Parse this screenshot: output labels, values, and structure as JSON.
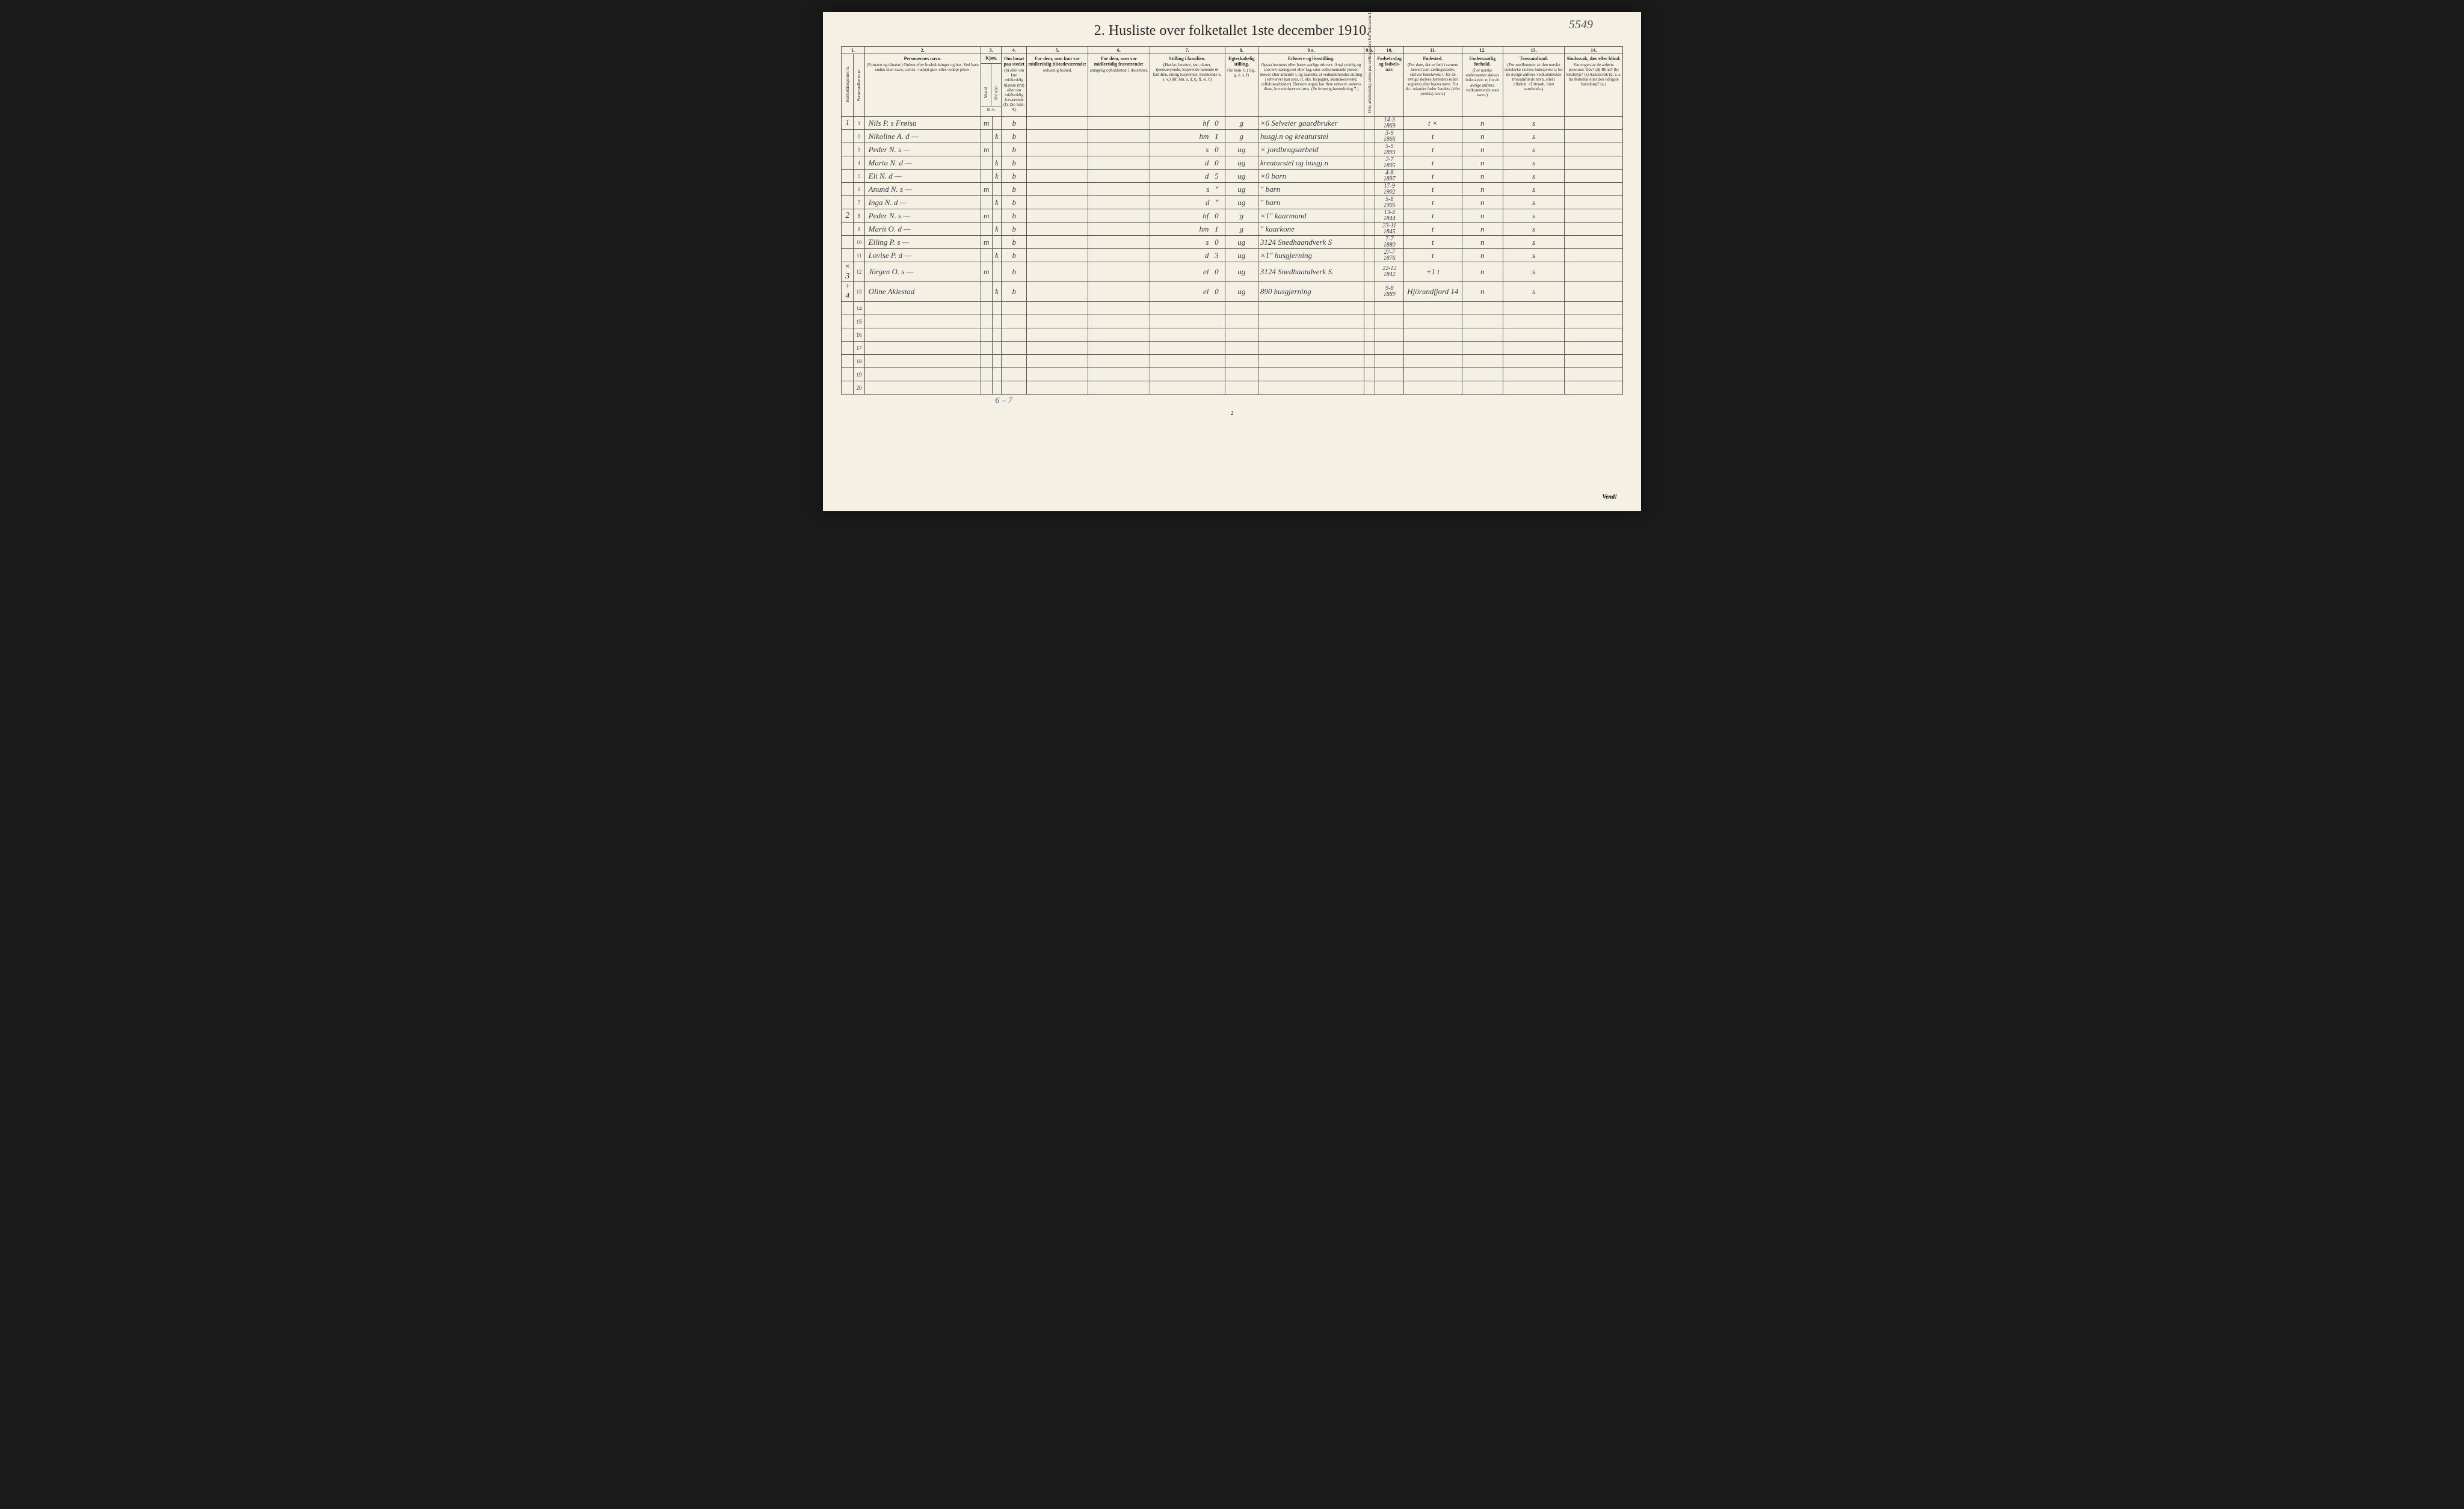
{
  "page_number_handwritten": "5549",
  "title": "2.  Husliste over folketallet 1ste december 1910.",
  "footer_page_num": "2",
  "vend_text": "Vend!",
  "bottom_tally": "6 – 7",
  "column_numbers": [
    "1.",
    "2.",
    "3.",
    "4.",
    "5.",
    "6.",
    "7.",
    "8.",
    "9 a.",
    "9 b.",
    "10.",
    "11.",
    "12.",
    "13.",
    "14."
  ],
  "headers": {
    "c1a": "Husholdningernes nr.",
    "c1b": "Personsedlernes nr.",
    "c2_title": "Personernes navn.",
    "c2_body": "(Fornavn og tilnavn.)\nOrdnet efter husholdninger og hus.\nVed barn endnu uten navn, sættes: «udøpt gut» eller «udøpt pike».",
    "c3_title": "Kjøn.",
    "c3a": "Mænd.",
    "c3b": "Kvinder.",
    "c3_foot": "m. k.",
    "c4_title": "Om bosat paa stedet",
    "c4_body": "(b) eller om kun midlertidig tilstede (mt) eller om midlertidig fraværende (f).\n(Se bem. 4.)",
    "c5_title": "For dem, som kun var midlertidig tilstedeværende:",
    "c5_body": "sedvanlig bosted.",
    "c6_title": "For dem, som var midlertidig fraværende:",
    "c6_body": "antagelig opholdssted 1 december.",
    "c7_title": "Stilling i familien.",
    "c7_body": "(Husfar, husmor, søn, datter, tjenestetyende, losjerende hørende til familien, enslig losjerende, besøkende o. s. v.)\n(hf, hm, s, d, tj, fl, el, b)",
    "c8_title": "Egteskabelig stilling.",
    "c8_body": "(Se bem. 6.)\n(ug, g, e, s, f)",
    "c9a_title": "Erhverv og livsstilling.",
    "c9a_body": "Ogsaa husmors eller barns særlige erhverv. Angi tydelig og specielt næringsvei eller fag, som vedkommende person utøver eller arbeider i, og saaledes at vedkommendes stilling i erhvervet kan sees, (f. eks. forpagter, skomakersvend, cellulosearbeider). Dersom nogen har flere erhverv, anføres disse, hovederhvervet først.\n(Se forøvrig bemerkning 7.)",
    "c9b": "Hvis arbeidsledig sættes paa tællingstidens her bokstaven: l.",
    "c10_title": "Fødsels-dag og fødsels-aar.",
    "c11_title": "Fødested.",
    "c11_body": "(For dem, der er født i samme herred som tællingsstedet, skrives bokstaven: t; for de øvrige skrives herredets (eller sognets) eller byens navn. For de i utlandet fødte: landets (eller stedets) navn.)",
    "c12_title": "Undersaatlig forhold.",
    "c12_body": "(For norske undersaatter skrives bokstaven: n; for de øvrige anføres vedkommende stats navn.)",
    "c13_title": "Trossamfund.",
    "c13_body": "(For medlemmer av den norske statskirke skrives bokstaven: s; for de øvrige anføres vedkommende trossamfunds navn, eller i tilfælde: «Uttraadt, intet samfund».)",
    "c14_title": "Sindssvak, døv eller blind.",
    "c14_body": "Var nogen av de anførte personer:\nDøv? (d)\nBlind? (b)\nSindssyk? (s)\nAandssvak (d. v. s. fra fødselen eller den tidligste barndom)? (a.)"
  },
  "rows": [
    {
      "hh": "1",
      "pn": "1",
      "name": "Nils P. s Frøisa",
      "mk": "m",
      "bmt": "b",
      "c5": "",
      "c6": "",
      "fam": "hf",
      "famnum": "0",
      "eg": "g",
      "erhv": "×6 Selveier gaardbruker",
      "dob": "14-3\n1869",
      "fsted": "t",
      "fsted2": "×",
      "nat": "n",
      "tro": "s",
      "c14": ""
    },
    {
      "hh": "",
      "pn": "2",
      "name": "Nikoline A. d   —",
      "mk": "k",
      "bmt": "b",
      "c5": "",
      "c6": "",
      "fam": "hm",
      "famnum": "1",
      "eg": "g",
      "erhv": "husgj.n og kreaturstel",
      "dob": "3-9\n1866",
      "fsted": "t",
      "fsted2": "",
      "nat": "n",
      "tro": "s",
      "c14": ""
    },
    {
      "hh": "",
      "pn": "3",
      "name": "Peder N. s      —",
      "mk": "m",
      "bmt": "b",
      "c5": "",
      "c6": "",
      "fam": "s",
      "famnum": "0",
      "eg": "ug",
      "erhv": "× jordbrugsarbeid",
      "dob": "5-9\n1893",
      "fsted": "t",
      "fsted2": "",
      "nat": "n",
      "tro": "s",
      "c14": ""
    },
    {
      "hh": "",
      "pn": "4",
      "name": "Marta N. d     —",
      "mk": "k",
      "bmt": "b",
      "c5": "",
      "c6": "",
      "fam": "d",
      "famnum": "0",
      "eg": "ug",
      "erhv": "kreaturstel og husgj.n",
      "dob": "2-7\n1895",
      "fsted": "t",
      "fsted2": "",
      "nat": "n",
      "tro": "s",
      "c14": ""
    },
    {
      "hh": "",
      "pn": "5",
      "name": "Eli N. d        —",
      "mk": "k",
      "bmt": "b",
      "c5": "",
      "c6": "",
      "fam": "d",
      "famnum": "5",
      "eg": "ug",
      "erhv": "×0        barn",
      "dob": "4-8\n1897",
      "fsted": "t",
      "fsted2": "",
      "nat": "n",
      "tro": "s",
      "c14": ""
    },
    {
      "hh": "",
      "pn": "6",
      "name": "Anund N. s    —",
      "mk": "m",
      "bmt": "b",
      "c5": "",
      "c6": "",
      "fam": "s",
      "famnum": "\"",
      "eg": "ug",
      "erhv": "\"          barn",
      "dob": "17-9\n1902",
      "fsted": "t",
      "fsted2": "",
      "nat": "n",
      "tro": "s",
      "c14": ""
    },
    {
      "hh": "",
      "pn": "7",
      "name": "Inga N. d      —",
      "mk": "k",
      "bmt": "b",
      "c5": "",
      "c6": "",
      "fam": "d",
      "famnum": "\"",
      "eg": "ug",
      "erhv": "\"          barn",
      "dob": "5-8\n1905",
      "fsted": "t",
      "fsted2": "",
      "nat": "n",
      "tro": "s",
      "c14": ""
    },
    {
      "hh": "2",
      "pn": "8",
      "name": "Peder N. s     —",
      "mk": "m",
      "bmt": "b",
      "c5": "",
      "c6": "",
      "fam": "hf",
      "famnum": "0",
      "eg": "g",
      "erhv": "×1\" kaarmand",
      "dob": "13-4\n1844",
      "fsted": "t",
      "fsted2": "",
      "nat": "n",
      "tro": "s",
      "c14": ""
    },
    {
      "hh": "",
      "pn": "9",
      "name": "Marit O. d     —",
      "mk": "k",
      "bmt": "b",
      "c5": "",
      "c6": "",
      "fam": "hm",
      "famnum": "1",
      "eg": "g",
      "erhv": "\"  kaarkone",
      "dob": "23-11\n1845",
      "fsted": "t",
      "fsted2": "",
      "nat": "n",
      "tro": "s",
      "c14": ""
    },
    {
      "hh": "",
      "pn": "10",
      "name": "Elling P. s     —",
      "mk": "m",
      "bmt": "b",
      "c5": "",
      "c6": "",
      "fam": "s",
      "famnum": "0",
      "eg": "ug",
      "erhv": "3124 Snedhaandverk   S",
      "dob": "7-7\n1880",
      "fsted": "t",
      "fsted2": "",
      "nat": "n",
      "tro": "s",
      "c14": ""
    },
    {
      "hh": "",
      "pn": "11",
      "name": "Lovise P. d    —",
      "mk": "k",
      "bmt": "b",
      "c5": "",
      "c6": "",
      "fam": "d",
      "famnum": "3",
      "eg": "ug",
      "erhv": "×1\" husgjerning",
      "dob": "27-7\n1876",
      "fsted": "t",
      "fsted2": "",
      "nat": "n",
      "tro": "s",
      "c14": ""
    },
    {
      "hh": "× 3",
      "pn": "12",
      "name": "Jörgen O. s    —",
      "mk": "m",
      "bmt": "b",
      "c5": "",
      "c6": "",
      "fam": "el",
      "famnum": "0",
      "eg": "ug",
      "erhv": "3124 Snedhaandverk  S.",
      "dob": "22-12\n1842",
      "fsted": "+1   t",
      "fsted2": "",
      "nat": "n",
      "tro": "s",
      "c14": ""
    },
    {
      "hh": "+ 4",
      "pn": "13",
      "name": "Oline Aklestad",
      "mk": "k",
      "bmt": "b",
      "c5": "",
      "c6": "",
      "fam": "el",
      "famnum": "0",
      "eg": "ug",
      "erhv": "890 husgjerning",
      "dob": "9-8\n1889",
      "fsted": "Hjörundfjord",
      "fsted2": "14",
      "nat": "n",
      "tro": "s",
      "c14": ""
    }
  ],
  "empty_row_nums": [
    "14",
    "15",
    "16",
    "17",
    "18",
    "19",
    "20"
  ]
}
